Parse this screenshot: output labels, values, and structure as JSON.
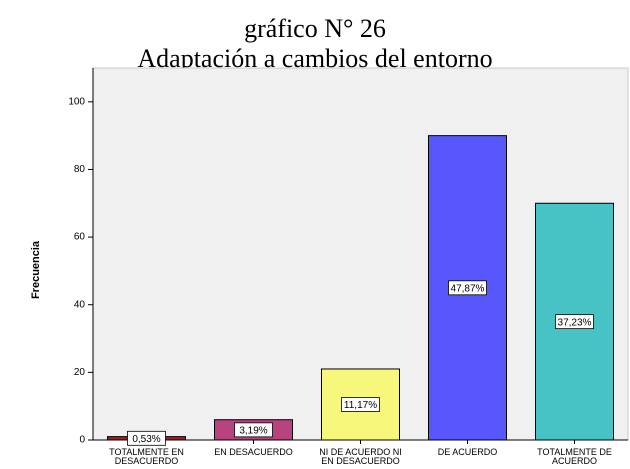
{
  "chart_data": {
    "type": "bar",
    "title": "gráfico N° 26",
    "subtitle": "Adaptación a cambios del entorno",
    "y_label": "Frecuencia",
    "categories": [
      "TOTALMENTE EN DESACUERDO",
      "EN DESACUERDO",
      "NI DE ACUERDO NI EN DESACUERDO",
      "DE ACUERDO",
      "TOTALMENTE DE ACUERDO"
    ],
    "values": [
      1,
      6,
      21,
      90,
      70
    ],
    "percent_labels": [
      "0,53%",
      "3,19%",
      "11,17%",
      "47,87%",
      "37,23%"
    ],
    "colors": [
      "#a31f22",
      "#b8437e",
      "#f7f77c",
      "#5757fb",
      "#47c3c5"
    ],
    "ylim": [
      0,
      110
    ],
    "yticks": [
      0,
      20,
      40,
      60,
      80,
      100
    ],
    "grid": false
  }
}
